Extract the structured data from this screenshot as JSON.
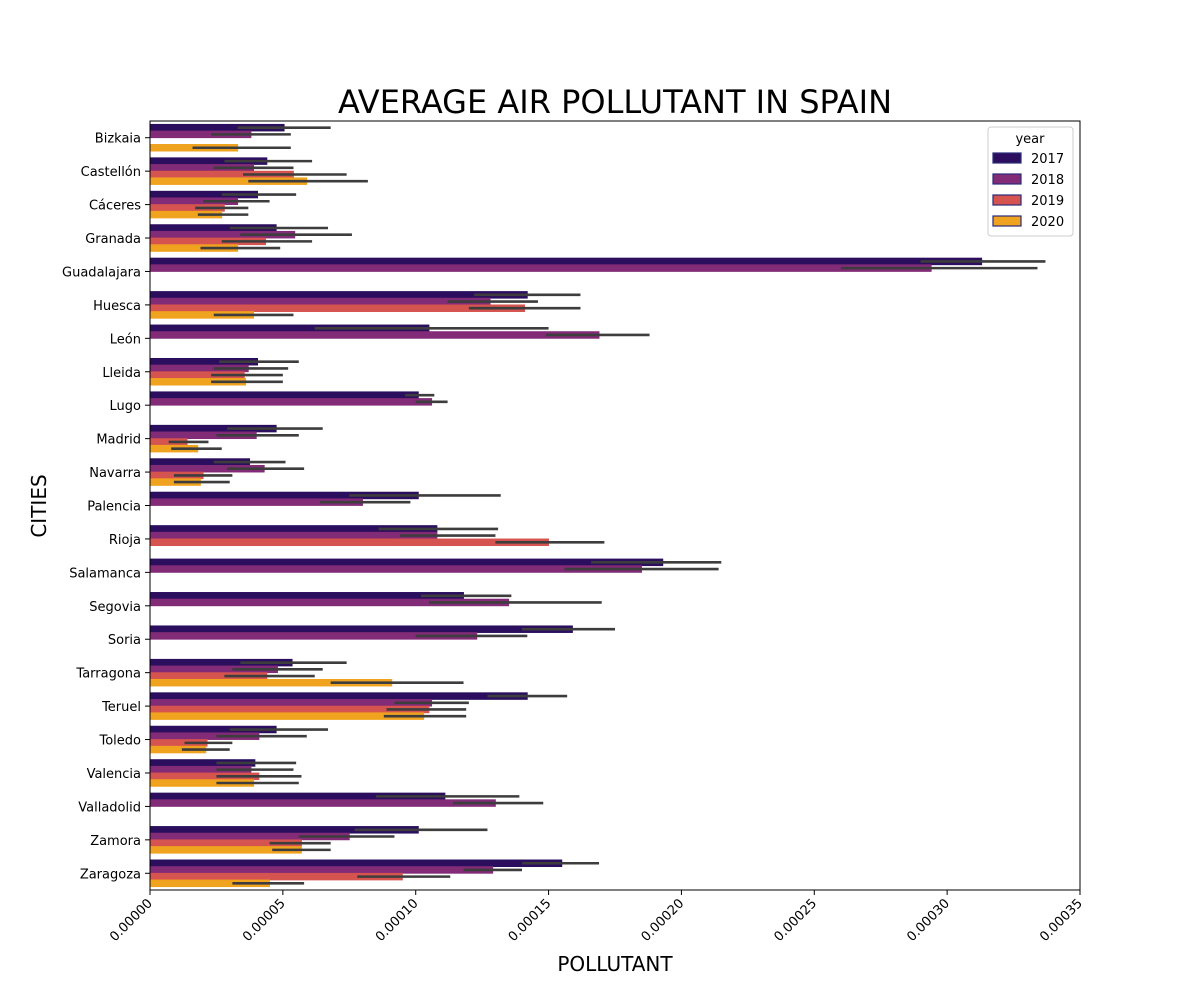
{
  "chart_data": {
    "type": "bar",
    "orientation": "horizontal",
    "title": "AVERAGE AIR POLLUTANT IN SPAIN",
    "xlabel": "POLLUTANT",
    "ylabel": "CITIES",
    "xlim": [
      0,
      0.00035
    ],
    "xticks": [
      "0.00000",
      "0.00005",
      "0.00010",
      "0.00015",
      "0.00020",
      "0.00025",
      "0.00030",
      "0.00035"
    ],
    "grid": false,
    "legend": {
      "title": "year",
      "position": "top-right"
    },
    "categories": [
      "Bizkaia",
      "Castellón",
      "Cáceres",
      "Granada",
      "Guadalajara",
      "Huesca",
      "León",
      "Lleida",
      "Lugo",
      "Madrid",
      "Navarra",
      "Palencia",
      "Rioja",
      "Salamanca",
      "Segovia",
      "Soria",
      "Tarragona",
      "Teruel",
      "Toledo",
      "Valencia",
      "Valladolid",
      "Zamora",
      "Zaragoza"
    ],
    "series": [
      {
        "name": "2017",
        "color": "#2b0f5e",
        "values": [
          5.05e-05,
          4.4e-05,
          4.05e-05,
          4.75e-05,
          0.000313,
          0.000142,
          0.000105,
          4.05e-05,
          0.000101,
          4.75e-05,
          3.75e-05,
          0.000101,
          0.000108,
          0.000193,
          0.000118,
          0.000159,
          5.35e-05,
          0.000142,
          4.75e-05,
          3.95e-05,
          0.000111,
          0.000101,
          0.000155
        ],
        "error_low": [
          3.3e-05,
          2.8e-05,
          2.7e-05,
          3e-05,
          0.00029,
          0.000122,
          6.2e-05,
          2.6e-05,
          9.6e-05,
          2.9e-05,
          2.4e-05,
          7.5e-05,
          8.6e-05,
          0.000166,
          0.000102,
          0.00014,
          3.4e-05,
          0.000127,
          3e-05,
          2.5e-05,
          8.5e-05,
          7.7e-05,
          0.00014
        ],
        "error_high": [
          6.8e-05,
          6.1e-05,
          5.5e-05,
          6.7e-05,
          0.000337,
          0.000162,
          0.00015,
          5.6e-05,
          0.000107,
          6.5e-05,
          5.1e-05,
          0.000132,
          0.000131,
          0.000215,
          0.000136,
          0.000175,
          7.4e-05,
          0.000157,
          6.7e-05,
          5.5e-05,
          0.000139,
          0.000127,
          0.000169
        ]
      },
      {
        "name": "2018",
        "color": "#822b77",
        "values": [
          3.8e-05,
          3.9e-05,
          3.3e-05,
          5.45e-05,
          0.000294,
          0.000128,
          0.000169,
          3.7e-05,
          0.000106,
          4e-05,
          4.3e-05,
          8e-05,
          0.000108,
          0.000185,
          0.000135,
          0.000123,
          4.8e-05,
          0.000106,
          4.1e-05,
          3.8e-05,
          0.00013,
          7.5e-05,
          0.000129
        ],
        "error_low": [
          2.3e-05,
          2.4e-05,
          2e-05,
          3.4e-05,
          0.00026,
          0.000112,
          0.000149,
          2.4e-05,
          0.0001,
          2.5e-05,
          2.9e-05,
          6.4e-05,
          9.4e-05,
          0.000156,
          0.000105,
          0.0001,
          3.1e-05,
          9.2e-05,
          2.5e-05,
          2.5e-05,
          0.000114,
          5.6e-05,
          0.000118
        ],
        "error_high": [
          5.3e-05,
          5.4e-05,
          4.5e-05,
          7.6e-05,
          0.000334,
          0.000146,
          0.000188,
          5.2e-05,
          0.000112,
          5.6e-05,
          5.8e-05,
          9.8e-05,
          0.00013,
          0.000214,
          0.00017,
          0.000142,
          6.5e-05,
          0.00012,
          5.9e-05,
          5.4e-05,
          0.000148,
          9.2e-05,
          0.00014
        ]
      },
      {
        "name": "2019",
        "color": "#d6544f",
        "values": [
          null,
          5.4e-05,
          2.8e-05,
          4.35e-05,
          null,
          0.000141,
          null,
          3.55e-05,
          null,
          1.4e-05,
          2e-05,
          null,
          0.00015,
          null,
          null,
          null,
          4.4e-05,
          0.000105,
          2.15e-05,
          4.1e-05,
          null,
          5.7e-05,
          9.5e-05
        ],
        "error_low": [
          null,
          3.5e-05,
          1.7e-05,
          2.7e-05,
          null,
          0.00012,
          null,
          2.3e-05,
          null,
          7e-06,
          9e-06,
          null,
          0.00013,
          null,
          null,
          null,
          2.8e-05,
          8.9e-05,
          1.3e-05,
          2.5e-05,
          null,
          4.5e-05,
          7.8e-05
        ],
        "error_high": [
          null,
          7.4e-05,
          3.7e-05,
          6.1e-05,
          null,
          0.000162,
          null,
          5e-05,
          null,
          2.2e-05,
          3.1e-05,
          null,
          0.000171,
          null,
          null,
          null,
          6.2e-05,
          0.000119,
          3.1e-05,
          5.7e-05,
          null,
          6.8e-05,
          0.000113
        ]
      },
      {
        "name": "2020",
        "color": "#f0a31f",
        "values": [
          3.3e-05,
          5.9e-05,
          2.7e-05,
          3.3e-05,
          null,
          3.9e-05,
          null,
          3.6e-05,
          null,
          1.8e-05,
          1.9e-05,
          null,
          null,
          null,
          null,
          null,
          9.1e-05,
          0.000103,
          2.1e-05,
          3.9e-05,
          null,
          5.7e-05,
          4.5e-05
        ],
        "error_low": [
          1.6e-05,
          3.7e-05,
          1.8e-05,
          1.9e-05,
          null,
          2.4e-05,
          null,
          2.3e-05,
          null,
          8e-06,
          9e-06,
          null,
          null,
          null,
          null,
          null,
          6.8e-05,
          8.8e-05,
          1.2e-05,
          2.5e-05,
          null,
          4.6e-05,
          3.1e-05
        ],
        "error_high": [
          5.3e-05,
          8.2e-05,
          3.7e-05,
          4.9e-05,
          null,
          5.4e-05,
          null,
          5e-05,
          null,
          2.7e-05,
          3e-05,
          null,
          null,
          null,
          null,
          null,
          0.000118,
          0.000119,
          3e-05,
          5.6e-05,
          null,
          6.8e-05,
          5.8e-05
        ]
      }
    ]
  }
}
